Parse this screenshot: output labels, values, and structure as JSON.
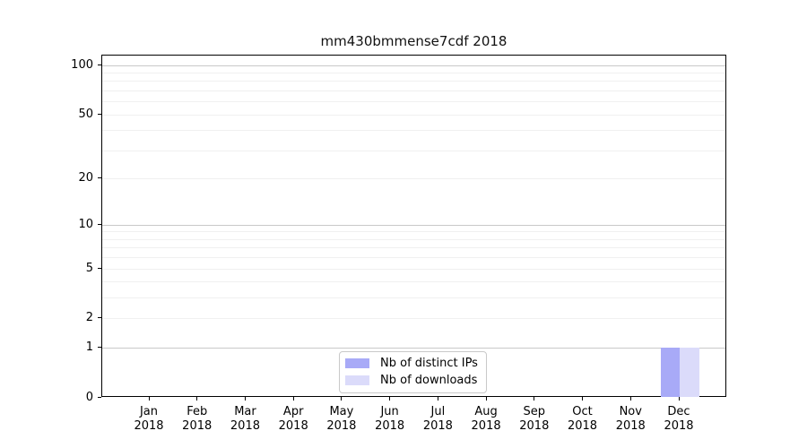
{
  "title": "mm430bmmense7cdf 2018",
  "chart_data": {
    "type": "bar",
    "title": "mm430bmmense7cdf 2018",
    "categories": [
      "Jan 2018",
      "Feb 2018",
      "Mar 2018",
      "Apr 2018",
      "May 2018",
      "Jun 2018",
      "Jul 2018",
      "Aug 2018",
      "Sep 2018",
      "Oct 2018",
      "Nov 2018",
      "Dec 2018"
    ],
    "x_tick_months": [
      "Jan",
      "Feb",
      "Mar",
      "Apr",
      "May",
      "Jun",
      "Jul",
      "Aug",
      "Sep",
      "Oct",
      "Nov",
      "Dec"
    ],
    "x_tick_year": "2018",
    "series": [
      {
        "name": "Nb of distinct IPs",
        "color": "#a8aaf7",
        "values": [
          0,
          0,
          0,
          0,
          0,
          0,
          0,
          0,
          0,
          0,
          0,
          1
        ]
      },
      {
        "name": "Nb of downloads",
        "color": "#dbdbfa",
        "values": [
          0,
          0,
          0,
          0,
          0,
          0,
          0,
          0,
          0,
          0,
          0,
          1
        ]
      }
    ],
    "y_axis": {
      "scale": "log1p",
      "ticks": [
        0,
        1,
        2,
        5,
        10,
        20,
        50,
        100
      ],
      "lim": [
        0,
        115
      ],
      "major_gridlines": [
        1,
        10,
        100
      ],
      "minor_gridlines": [
        2,
        3,
        4,
        5,
        6,
        7,
        8,
        9,
        20,
        30,
        40,
        50,
        60,
        70,
        80,
        90
      ]
    },
    "legend": {
      "position": "lower center",
      "entries": [
        "Nb of distinct IPs",
        "Nb of downloads"
      ]
    },
    "grid": {
      "major_color": "#c9c9c9",
      "minor_color": "#f0f0f0"
    },
    "colors": {
      "spine": "#000000",
      "text": "#000000"
    }
  }
}
